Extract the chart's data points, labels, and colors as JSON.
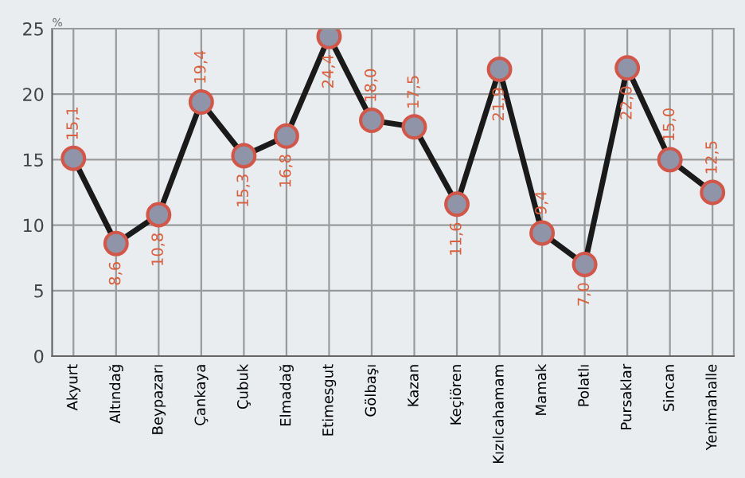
{
  "chart_data": {
    "type": "line",
    "ylabel": "%",
    "categories": [
      "Akyurt",
      "Altındağ",
      "Beypazarı",
      "Çankaya",
      "Çubuk",
      "Elmadağ",
      "Etimesgut",
      "Gölbaşı",
      "Kazan",
      "Keçiören",
      "Kızılcahamam",
      "Mamak",
      "Polatlı",
      "Pursaklar",
      "Sincan",
      "Yenimahalle"
    ],
    "series": [
      {
        "color": "#1a1a1a",
        "values": [
          15.1,
          8.6,
          10.8,
          19.4,
          15.3,
          16.8,
          24.4,
          18.0,
          17.5,
          11.6,
          21.9,
          9.4,
          7.0,
          22.0,
          15.0,
          12.5
        ],
        "value_labels": [
          "15,1",
          "8,6",
          "10,8",
          "19,4",
          "15,3",
          "16,8",
          "24,4",
          "18,0",
          "17,5",
          "11,6",
          "21,9",
          "9,4",
          "7,0",
          "22,0",
          "15,0",
          "12,5"
        ]
      }
    ],
    "ylim": [
      0,
      25
    ],
    "yticks": [
      0,
      5,
      10,
      15,
      20,
      25
    ],
    "grid": true,
    "marker": "circle",
    "line_style": "solid",
    "legend": false
  }
}
